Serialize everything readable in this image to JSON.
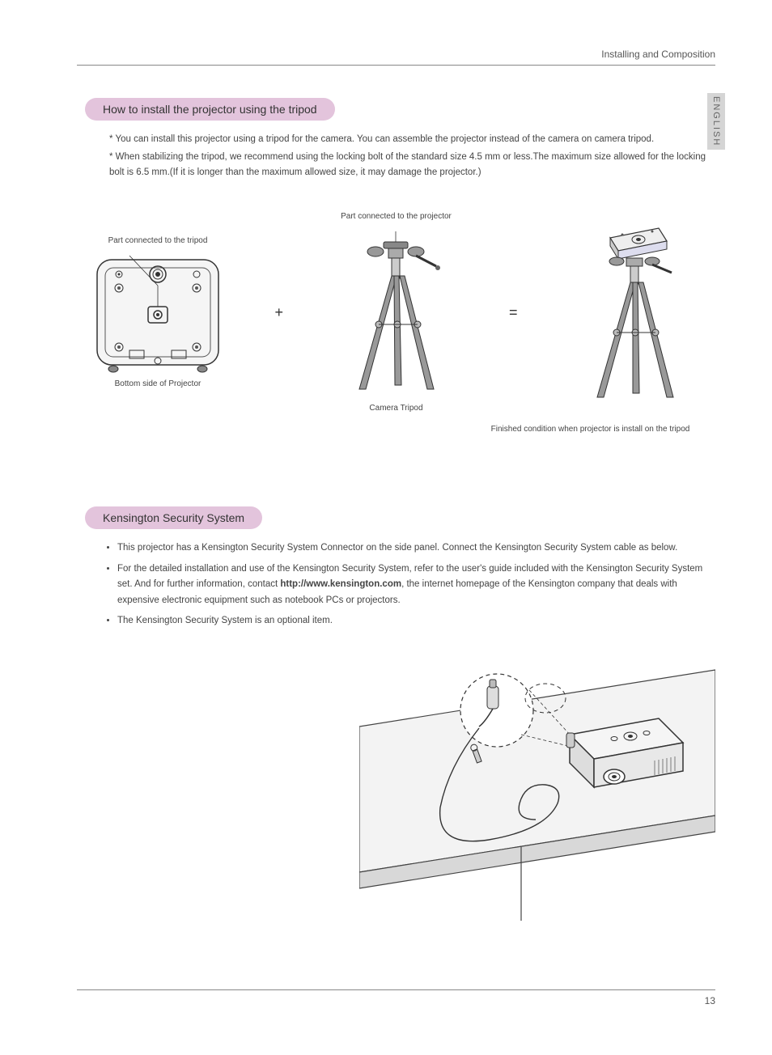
{
  "header": {
    "section_title": "Installing and Composition"
  },
  "side_tab": {
    "label": "ENGLISH"
  },
  "section1": {
    "heading": "How to install the projector using the tripod",
    "note1": "* You can install this projector using a tripod for the camera. You can assemble the projector instead of the camera on camera tripod.",
    "note2": "* When stabilizing the tripod, we recommend using the locking bolt of the standard size 4.5 mm or less.The maximum size allowed for the locking bolt is 6.5 mm.(If it is longer than the maximum allowed size, it may damage the projector.)",
    "diagram": {
      "left_caption_above": "Part connected to the tripod",
      "left_caption_below": "Bottom side of Projector",
      "mid_caption_above": "Part connected to the projector",
      "mid_caption_below": "Camera Tripod",
      "plus": "+",
      "equals": "=",
      "finished_caption": "Finished condition when projector is install on the tripod"
    }
  },
  "section2": {
    "heading": "Kensington Security System",
    "bullets": [
      "This projector has a Kensington Security System Connector on the side panel. Connect the Kensington Security System cable as below.",
      "For the detailed installation and use of the Kensington Security System, refer to the user's guide included with the Kensington Security System set. And for further information, contact <b>http://www.kensington.com</b>, the internet homepage of the Kensington company that deals with expensive electronic equipment such as notebook PCs or projectors.",
      "The Kensington Security System is an optional item."
    ]
  },
  "footer": {
    "page_number": "13"
  },
  "colors": {
    "heading_bg": "#e3c4dc",
    "tab_bg": "#d5d5d5",
    "line": "#888888",
    "stroke": "#333333"
  }
}
